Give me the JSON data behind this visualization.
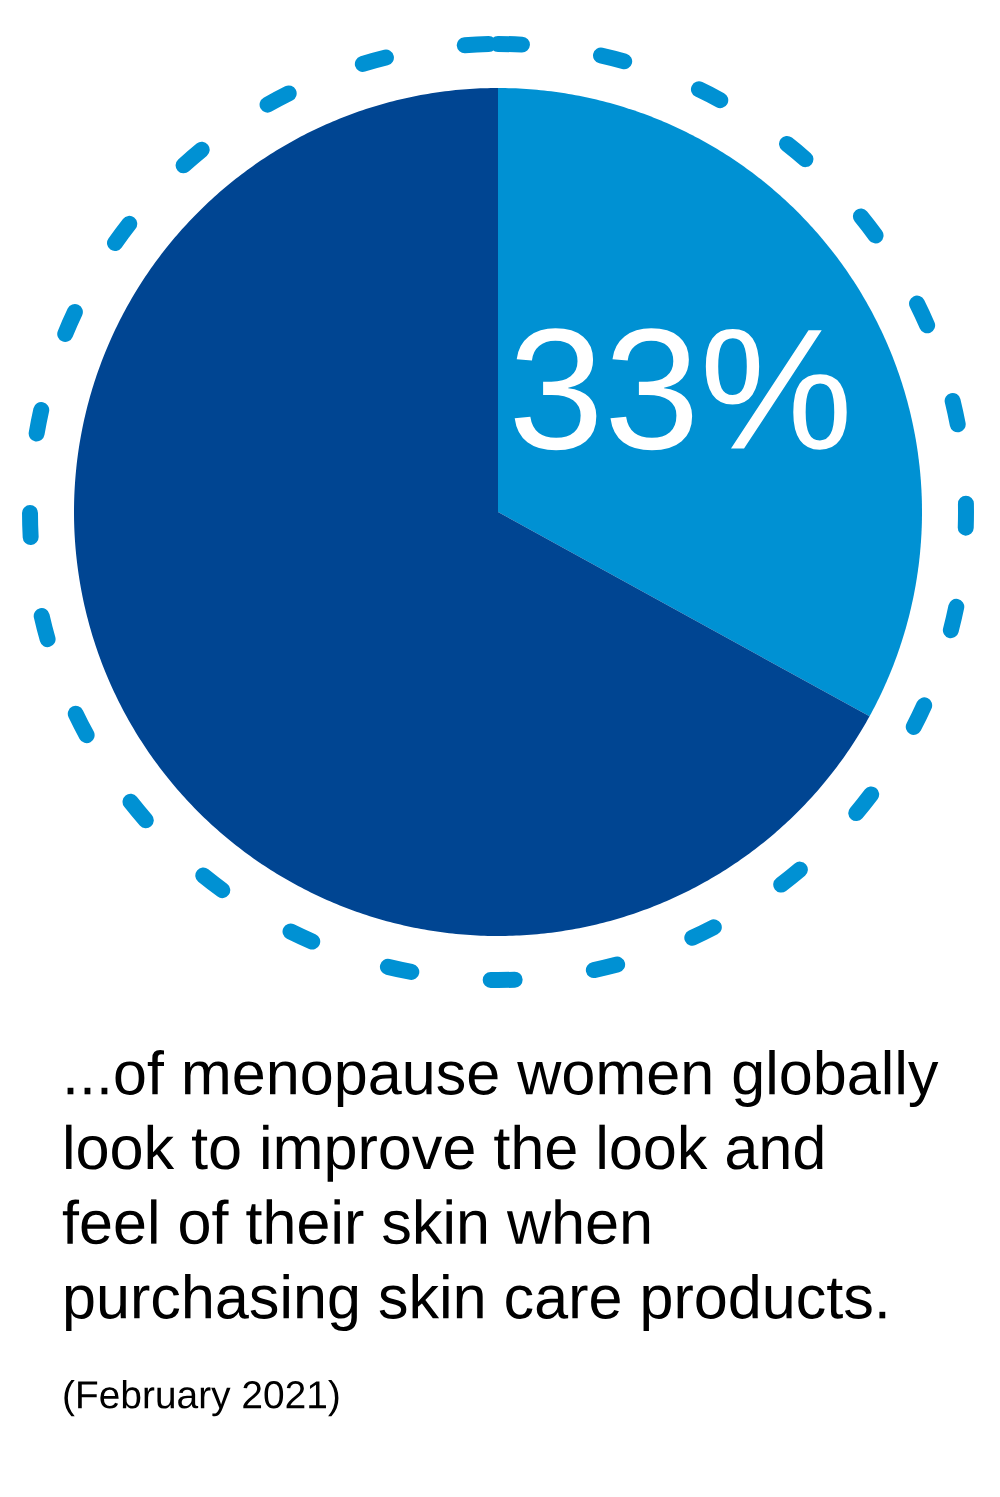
{
  "chart_data": {
    "type": "pie",
    "categories": [
      null,
      null
    ],
    "values": [
      33,
      67
    ],
    "colors": [
      "#0091d3",
      "#004592"
    ],
    "value_labels": [
      "33%",
      null
    ],
    "title": "...of menopause women globally\nlook to improve the look and\nfeel of their skin when\npurchasing skin care products.",
    "annotations": [
      "(February 2021)"
    ]
  }
}
